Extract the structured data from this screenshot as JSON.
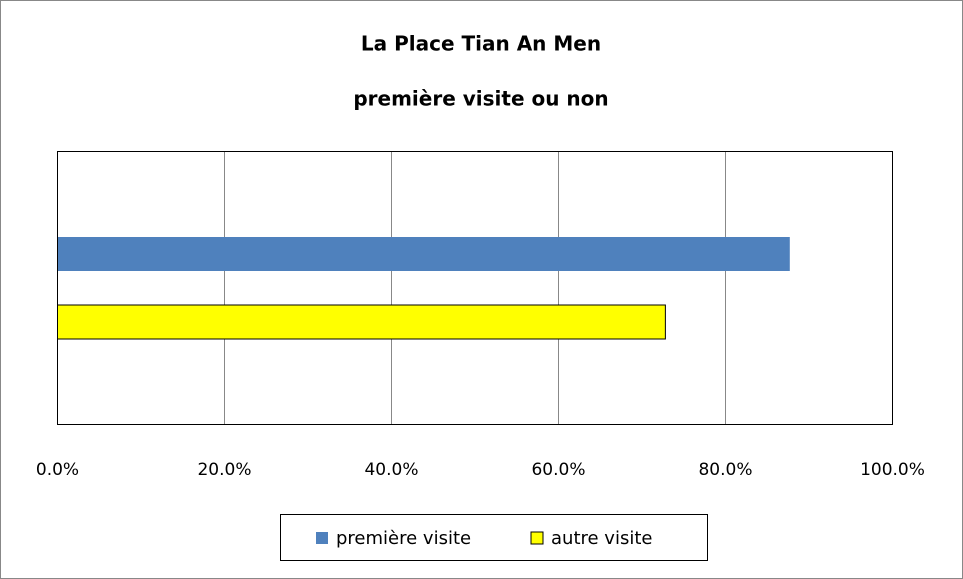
{
  "chart_data": {
    "type": "barh",
    "title": "La Place Tian An Men",
    "subtitle": "première visite ou non",
    "categories": [
      null
    ],
    "series": [
      {
        "name": "première visite",
        "color": "#4f81bd",
        "values": [
          87.7
        ]
      },
      {
        "name": "autre visite",
        "color": "#ffff00",
        "values": [
          72.8
        ]
      }
    ],
    "xlim": [
      0,
      100
    ],
    "xticks": [
      {
        "value": 0,
        "label": "0.0%"
      },
      {
        "value": 20,
        "label": "20.0%"
      },
      {
        "value": 40,
        "label": "40.0%"
      },
      {
        "value": 60,
        "label": "60.0%"
      },
      {
        "value": 80,
        "label": "80.0%"
      },
      {
        "value": 100,
        "label": "100.0%"
      }
    ],
    "grid": true,
    "legend": "bottom"
  }
}
